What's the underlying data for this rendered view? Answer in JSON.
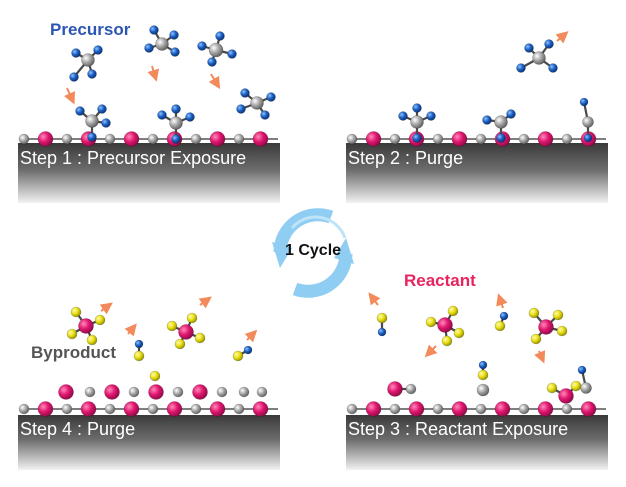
{
  "diagram": {
    "cycle_label": "1 Cycle",
    "panels": [
      {
        "id": "step1",
        "caption": "Step 1 : Precursor Exposure",
        "title": "Precursor"
      },
      {
        "id": "step2",
        "caption": "Step 2 : Purge"
      },
      {
        "id": "step3",
        "caption": "Step 3 : Reactant Exposure",
        "title": "Reactant"
      },
      {
        "id": "step4",
        "caption": "Step 4 : Purge",
        "title": "Byproduct"
      }
    ]
  },
  "colors": {
    "substrate_pink": "#e0156f",
    "substrate_gray": "#9a9a9a",
    "precursor_blue": "#1a5fc4",
    "reactant_yellow": "#e8df10",
    "precursor_text": "#2d56b4",
    "reactant_text": "#e8245e",
    "byproduct_text": "#555555",
    "arrow": "#f28a5c",
    "cycle_arrow": "#7cc4ee"
  }
}
